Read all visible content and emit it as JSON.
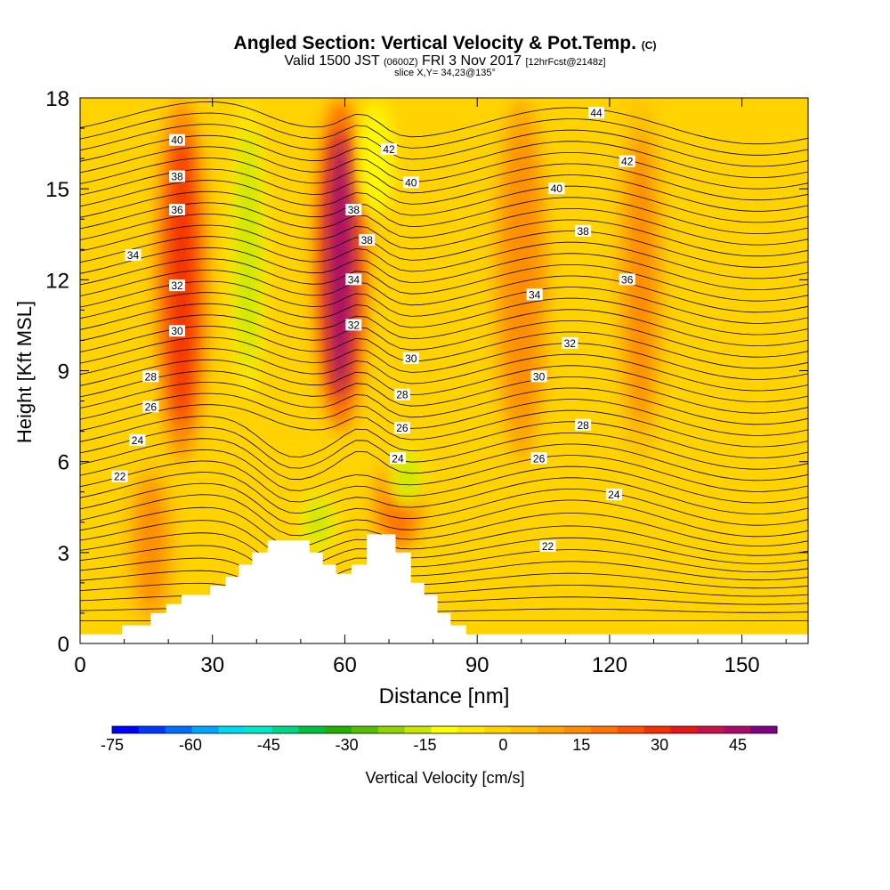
{
  "title": {
    "main": "Angled Section: Vertical Velocity & Pot.Temp.",
    "copyright": "(C)",
    "valid_prefix": "Valid 1500 JST",
    "valid_utc": "(0600Z)",
    "valid_date": "FRI 3 Nov 2017",
    "fcst": "[12hrFcst@2148z]",
    "slice": "slice X,Y= 34,23@135°"
  },
  "chart_data": {
    "type": "contour",
    "xlabel": "Distance [nm]",
    "ylabel": "Height [Kft MSL]",
    "xlim": [
      0,
      165
    ],
    "ylim": [
      0,
      18
    ],
    "x_ticks": [
      0,
      30,
      60,
      90,
      120,
      150
    ],
    "y_ticks": [
      0,
      3,
      6,
      9,
      12,
      15,
      18
    ],
    "fill_variable": "Vertical Velocity [cm/s]",
    "colorbar": {
      "label": "Vertical Velocity [cm/s]",
      "range": [
        -75,
        52.5
      ],
      "step": 5,
      "tick_values": [
        -75,
        -60,
        -45,
        -30,
        -15,
        0,
        15,
        30,
        45
      ],
      "colors": [
        "#0000ff",
        "#0037ff",
        "#006eff",
        "#00a5ff",
        "#00d8f0",
        "#00e8c8",
        "#00d68a",
        "#00c040",
        "#22b000",
        "#55be00",
        "#8fd400",
        "#c8e800",
        "#ffff00",
        "#ffe800",
        "#ffd200",
        "#ffbf00",
        "#ffa500",
        "#ff8c00",
        "#ff7100",
        "#ff5200",
        "#f53000",
        "#e51818",
        "#c8104a",
        "#aa0a6a",
        "#800080"
      ]
    },
    "vertical_velocity_field": {
      "description_cm_s": "approximate peak values of coherent features",
      "features": [
        {
          "x_center": 23,
          "kft_from": 6,
          "kft_to": 18,
          "peak": 25
        },
        {
          "x_center": 38,
          "kft_from": 8,
          "kft_to": 18,
          "peak": -20
        },
        {
          "x_center": 59,
          "kft_from": 7,
          "kft_to": 18,
          "peak": 40
        },
        {
          "x_center": 67,
          "kft_from": 14,
          "kft_to": 18,
          "peak": -15
        },
        {
          "x_center": 72,
          "kft_from": 3,
          "kft_to": 6,
          "peak": 15
        },
        {
          "x_center": 74,
          "kft_from": 4.5,
          "kft_to": 6.5,
          "peak": -18
        },
        {
          "x_center": 54,
          "kft_from": 3,
          "kft_to": 5,
          "peak": -18
        },
        {
          "x_center": 100,
          "kft_from": 6,
          "kft_to": 18,
          "peak": 12
        },
        {
          "x_center": 127,
          "kft_from": 6,
          "kft_to": 18,
          "peak": 10
        },
        {
          "x_center": 16,
          "kft_from": 0.5,
          "kft_to": 6,
          "peak": 10
        }
      ]
    },
    "pot_temp_contours": {
      "interval": 1,
      "labels": [
        {
          "value": "22",
          "x": 9,
          "kft": 5.5
        },
        {
          "value": "24",
          "x": 13,
          "kft": 6.7
        },
        {
          "value": "26",
          "x": 16,
          "kft": 7.8
        },
        {
          "value": "28",
          "x": 16,
          "kft": 8.8
        },
        {
          "value": "30",
          "x": 22,
          "kft": 10.3
        },
        {
          "value": "32",
          "x": 22,
          "kft": 11.8
        },
        {
          "value": "34",
          "x": 12,
          "kft": 12.8
        },
        {
          "value": "36",
          "x": 22,
          "kft": 14.3
        },
        {
          "value": "38",
          "x": 22,
          "kft": 15.4
        },
        {
          "value": "40",
          "x": 22,
          "kft": 16.6
        },
        {
          "value": "42",
          "x": 70,
          "kft": 16.3
        },
        {
          "value": "40",
          "x": 75,
          "kft": 15.2
        },
        {
          "value": "38",
          "x": 62,
          "kft": 14.3
        },
        {
          "value": "38",
          "x": 65,
          "kft": 13.3
        },
        {
          "value": "34",
          "x": 62,
          "kft": 12.0
        },
        {
          "value": "32",
          "x": 62,
          "kft": 10.5
        },
        {
          "value": "30",
          "x": 75,
          "kft": 9.4
        },
        {
          "value": "28",
          "x": 73,
          "kft": 8.2
        },
        {
          "value": "26",
          "x": 73,
          "kft": 7.1
        },
        {
          "value": "24",
          "x": 72,
          "kft": 6.1
        },
        {
          "value": "44",
          "x": 117,
          "kft": 17.5
        },
        {
          "value": "42",
          "x": 124,
          "kft": 15.9
        },
        {
          "value": "40",
          "x": 108,
          "kft": 15.0
        },
        {
          "value": "38",
          "x": 114,
          "kft": 13.6
        },
        {
          "value": "36",
          "x": 124,
          "kft": 12.0
        },
        {
          "value": "34",
          "x": 103,
          "kft": 11.5
        },
        {
          "value": "32",
          "x": 111,
          "kft": 9.9
        },
        {
          "value": "30",
          "x": 104,
          "kft": 8.8
        },
        {
          "value": "28",
          "x": 114,
          "kft": 7.2
        },
        {
          "value": "26",
          "x": 104,
          "kft": 6.1
        },
        {
          "value": "24",
          "x": 121,
          "kft": 4.9
        },
        {
          "value": "22",
          "x": 106,
          "kft": 3.2
        }
      ]
    },
    "terrain_profile": {
      "x": [
        0,
        9.5,
        9.5,
        16,
        16,
        19.5,
        19.5,
        23,
        23,
        29.5,
        29.5,
        33,
        33,
        36,
        36,
        39,
        39,
        42.5,
        42.5,
        52,
        52,
        55,
        55,
        58,
        58,
        61.5,
        61.5,
        65,
        65,
        71.5,
        71.5,
        75,
        75,
        78,
        78,
        81,
        81,
        84,
        84,
        87.5,
        87.5,
        91,
        91,
        165
      ],
      "kft": [
        0.3,
        0.3,
        0.6,
        0.6,
        1.0,
        1.0,
        1.3,
        1.3,
        1.6,
        1.6,
        1.9,
        1.9,
        2.2,
        2.2,
        2.6,
        2.6,
        3.0,
        3.0,
        3.4,
        3.4,
        3.0,
        3.0,
        2.6,
        2.6,
        2.3,
        2.3,
        2.6,
        2.6,
        3.6,
        3.6,
        3.0,
        3.0,
        2.0,
        2.0,
        1.6,
        1.6,
        1.0,
        1.0,
        0.6,
        0.6,
        0.3,
        0.3,
        0.3,
        0.3
      ]
    }
  }
}
